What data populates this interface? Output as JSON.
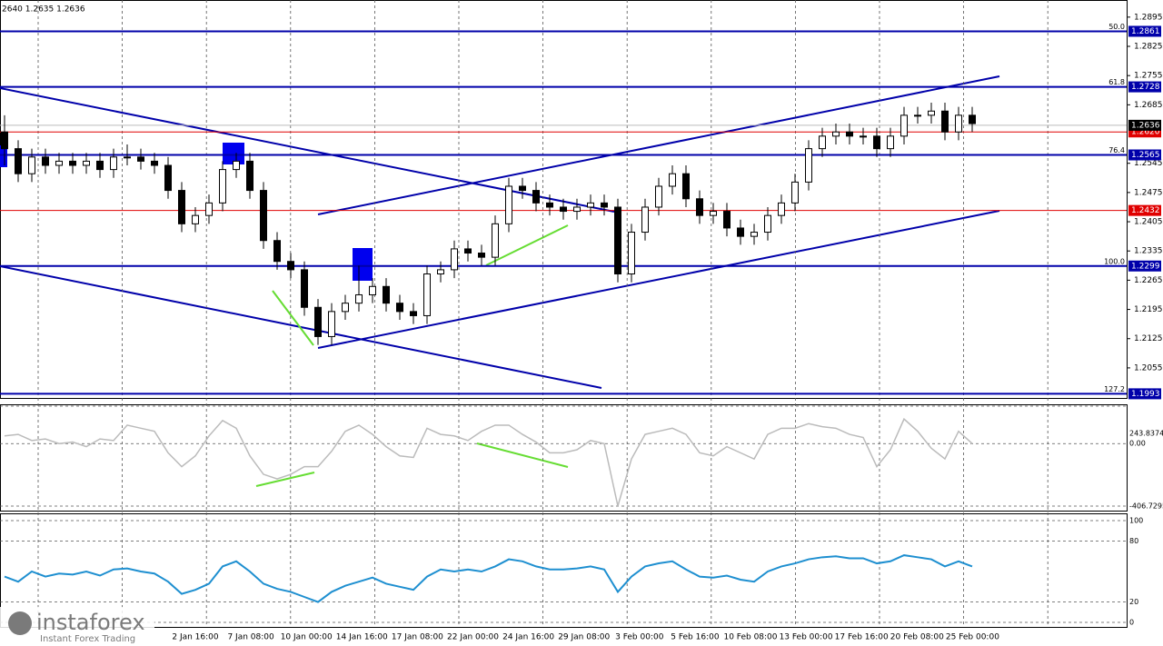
{
  "chart_data": {
    "type": "candlestick",
    "subtitle": "2640 1.2635 1.2636",
    "ylim": [
      1.1983,
      1.2936
    ],
    "yticks": [
      1.2895,
      1.2825,
      1.2755,
      1.2685,
      1.2545,
      1.2475,
      1.2405,
      1.2335,
      1.2265,
      1.2195,
      1.2125,
      1.2055
    ],
    "grid": true,
    "categories": [
      "2 Jan 16:00",
      "7 Jan 08:00",
      "10 Jan 00:00",
      "14 Jan 16:00",
      "17 Jan 08:00",
      "22 Jan 00:00",
      "24 Jan 16:00",
      "29 Jan 08:00",
      "3 Feb 00:00",
      "5 Feb 16:00",
      "10 Feb 08:00",
      "13 Feb 00:00",
      "17 Feb 16:00",
      "20 Feb 08:00",
      "25 Feb 00:00"
    ],
    "color_up": "#ffffff",
    "color_down": "#000000",
    "candles": [
      [
        1.262,
        1.266,
        1.254,
        1.258
      ],
      [
        1.258,
        1.26,
        1.25,
        1.252
      ],
      [
        1.252,
        1.258,
        1.25,
        1.256
      ],
      [
        1.256,
        1.258,
        1.252,
        1.254
      ],
      [
        1.254,
        1.257,
        1.252,
        1.255
      ],
      [
        1.255,
        1.257,
        1.252,
        1.254
      ],
      [
        1.254,
        1.257,
        1.252,
        1.255
      ],
      [
        1.255,
        1.257,
        1.251,
        1.253
      ],
      [
        1.253,
        1.258,
        1.251,
        1.256
      ],
      [
        1.256,
        1.259,
        1.254,
        1.256
      ],
      [
        1.256,
        1.258,
        1.253,
        1.255
      ],
      [
        1.255,
        1.257,
        1.252,
        1.254
      ],
      [
        1.254,
        1.256,
        1.246,
        1.248
      ],
      [
        1.248,
        1.25,
        1.238,
        1.24
      ],
      [
        1.24,
        1.244,
        1.238,
        1.242
      ],
      [
        1.242,
        1.247,
        1.24,
        1.245
      ],
      [
        1.245,
        1.255,
        1.243,
        1.253
      ],
      [
        1.253,
        1.257,
        1.251,
        1.255
      ],
      [
        1.255,
        1.257,
        1.246,
        1.248
      ],
      [
        1.248,
        1.25,
        1.234,
        1.236
      ],
      [
        1.236,
        1.238,
        1.229,
        1.231
      ],
      [
        1.231,
        1.233,
        1.227,
        1.229
      ],
      [
        1.229,
        1.231,
        1.218,
        1.22
      ],
      [
        1.22,
        1.222,
        1.211,
        1.213
      ],
      [
        1.213,
        1.221,
        1.211,
        1.219
      ],
      [
        1.219,
        1.223,
        1.217,
        1.221
      ],
      [
        1.221,
        1.23,
        1.219,
        1.223
      ],
      [
        1.223,
        1.227,
        1.221,
        1.225
      ],
      [
        1.225,
        1.227,
        1.219,
        1.221
      ],
      [
        1.221,
        1.223,
        1.217,
        1.219
      ],
      [
        1.219,
        1.221,
        1.216,
        1.218
      ],
      [
        1.218,
        1.23,
        1.216,
        1.228
      ],
      [
        1.228,
        1.231,
        1.226,
        1.229
      ],
      [
        1.229,
        1.236,
        1.227,
        1.234
      ],
      [
        1.234,
        1.236,
        1.231,
        1.233
      ],
      [
        1.233,
        1.235,
        1.23,
        1.232
      ],
      [
        1.232,
        1.242,
        1.23,
        1.24
      ],
      [
        1.24,
        1.251,
        1.238,
        1.249
      ],
      [
        1.249,
        1.251,
        1.246,
        1.248
      ],
      [
        1.248,
        1.25,
        1.243,
        1.245
      ],
      [
        1.245,
        1.247,
        1.242,
        1.244
      ],
      [
        1.244,
        1.246,
        1.241,
        1.243
      ],
      [
        1.243,
        1.246,
        1.241,
        1.244
      ],
      [
        1.244,
        1.247,
        1.242,
        1.245
      ],
      [
        1.245,
        1.247,
        1.242,
        1.244
      ],
      [
        1.244,
        1.246,
        1.226,
        1.228
      ],
      [
        1.228,
        1.24,
        1.226,
        1.238
      ],
      [
        1.238,
        1.246,
        1.236,
        1.244
      ],
      [
        1.244,
        1.251,
        1.242,
        1.249
      ],
      [
        1.249,
        1.254,
        1.247,
        1.252
      ],
      [
        1.252,
        1.254,
        1.244,
        1.246
      ],
      [
        1.246,
        1.248,
        1.24,
        1.242
      ],
      [
        1.242,
        1.245,
        1.24,
        1.243
      ],
      [
        1.243,
        1.245,
        1.237,
        1.239
      ],
      [
        1.239,
        1.241,
        1.235,
        1.237
      ],
      [
        1.237,
        1.24,
        1.235,
        1.238
      ],
      [
        1.238,
        1.244,
        1.236,
        1.242
      ],
      [
        1.242,
        1.247,
        1.24,
        1.245
      ],
      [
        1.245,
        1.252,
        1.243,
        1.25
      ],
      [
        1.25,
        1.26,
        1.248,
        1.258
      ],
      [
        1.258,
        1.263,
        1.256,
        1.261
      ],
      [
        1.261,
        1.264,
        1.259,
        1.262
      ],
      [
        1.262,
        1.264,
        1.259,
        1.261
      ],
      [
        1.261,
        1.263,
        1.259,
        1.261
      ],
      [
        1.261,
        1.263,
        1.256,
        1.258
      ],
      [
        1.258,
        1.263,
        1.256,
        1.261
      ],
      [
        1.261,
        1.268,
        1.259,
        1.266
      ],
      [
        1.266,
        1.268,
        1.264,
        1.266
      ],
      [
        1.266,
        1.269,
        1.264,
        1.267
      ],
      [
        1.267,
        1.269,
        1.26,
        1.262
      ],
      [
        1.262,
        1.268,
        1.26,
        1.266
      ],
      [
        1.266,
        1.268,
        1.262,
        1.264
      ]
    ],
    "levels": [
      {
        "name": "50.0",
        "price": 1.2861,
        "color": "#0000aa"
      },
      {
        "name": "61.8",
        "price": 1.2728,
        "color": "#0000aa"
      },
      {
        "name": "76.4",
        "price": 1.2565,
        "color": "#0000aa"
      },
      {
        "name": "100.0",
        "price": 1.2299,
        "color": "#0000aa"
      },
      {
        "name": "127.2",
        "price": 1.1993,
        "color": "#0000aa"
      }
    ],
    "lines": [
      {
        "price": {
          "value": 1.262,
          "label": "1.2620"
        },
        "color": "#e00000"
      },
      {
        "price": 1.2432,
        "color": "#e00000"
      }
    ],
    "current_price": 1.2636,
    "indicators": [
      {
        "type": "line",
        "color": "#bbbbbb",
        "ylim": [
          -406.7295,
          243.8374
        ],
        "yticks": [
          243.8374,
          {
            "value": 0,
            "label": "0.00"
          },
          -406.7295
        ],
        "values": [
          50,
          60,
          20,
          30,
          0,
          10,
          -20,
          30,
          20,
          120,
          100,
          80,
          -60,
          -150,
          -80,
          50,
          150,
          100,
          -80,
          -200,
          -230,
          -200,
          -150,
          -150,
          -50,
          80,
          120,
          60,
          -20,
          -80,
          -90,
          100,
          60,
          50,
          20,
          80,
          120,
          120,
          60,
          10,
          -60,
          -60,
          -40,
          20,
          0,
          -406,
          -100,
          60,
          80,
          100,
          60,
          -60,
          -80,
          -20,
          -60,
          -100,
          60,
          100,
          100,
          130,
          110,
          100,
          60,
          40,
          -150,
          -40,
          160,
          80,
          -30,
          -100,
          80,
          0
        ]
      },
      {
        "type": "line",
        "color": "#1e8fd0",
        "ylim": [
          0,
          100
        ],
        "yticks": [
          100,
          80,
          20,
          0
        ],
        "values": [
          45,
          40,
          50,
          45,
          48,
          47,
          50,
          46,
          52,
          53,
          50,
          48,
          40,
          28,
          32,
          38,
          55,
          60,
          50,
          38,
          33,
          30,
          25,
          20,
          30,
          36,
          40,
          44,
          38,
          35,
          32,
          45,
          52,
          50,
          52,
          50,
          55,
          62,
          60,
          55,
          52,
          52,
          53,
          55,
          52,
          30,
          45,
          55,
          58,
          60,
          52,
          45,
          44,
          46,
          42,
          40,
          50,
          55,
          58,
          62,
          64,
          65,
          63,
          63,
          58,
          60,
          66,
          64,
          62,
          55,
          60,
          55
        ]
      }
    ]
  },
  "logo": {
    "name": "instaforex",
    "tagline": "Instant Forex Trading"
  }
}
